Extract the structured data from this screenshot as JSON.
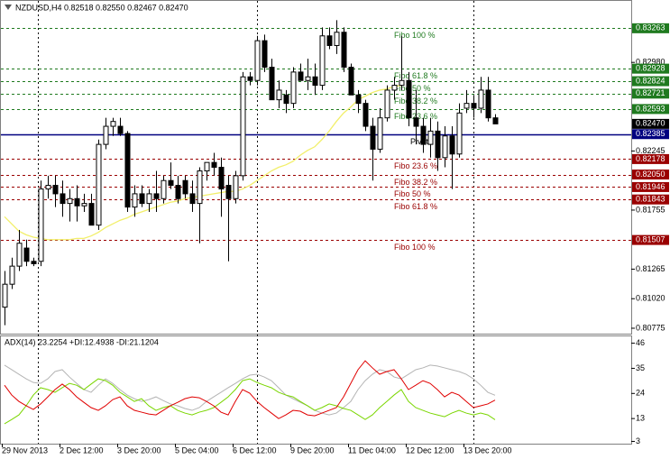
{
  "chart_data": [
    {
      "type": "candlestick",
      "title": "NZDUSD,H4  0.82518 0.82550 0.82467 0.82470",
      "categories": [
        "29 Nov 2013",
        null,
        null,
        null,
        null,
        null,
        null,
        null,
        "2 Dec 12:00",
        null,
        null,
        null,
        null,
        null,
        null,
        null,
        "3 Dec 20:00",
        null,
        null,
        null,
        null,
        null,
        null,
        null,
        "5 Dec 04:00",
        null,
        null,
        null,
        null,
        null,
        null,
        null,
        "6 Dec 12:00",
        null,
        null,
        null,
        null,
        null,
        null,
        null,
        "9 Dec 20:00",
        null,
        null,
        null,
        null,
        null,
        null,
        null,
        "11 Dec 04:00",
        null,
        null,
        null,
        null,
        null,
        null,
        null,
        "12 Dec 12:00",
        null,
        null,
        null,
        null,
        null,
        null,
        null,
        "13 Dec 20:00",
        null,
        null,
        null,
        null
      ],
      "open": [
        0.8095,
        0.8114,
        0.8129,
        0.8144,
        0.8133,
        0.8133,
        0.8193,
        0.8196,
        0.8189,
        0.8181,
        0.8185,
        0.8179,
        0.8181,
        0.8163,
        0.823,
        0.8245,
        0.8245,
        0.8239,
        0.8178,
        0.8189,
        0.8181,
        0.8189,
        0.8185,
        0.82,
        0.8196,
        0.82,
        0.8189,
        0.8181,
        0.8208,
        0.8215,
        0.8211,
        0.8196,
        0.8185,
        0.8204,
        0.8286,
        0.8283,
        0.8316,
        0.8294,
        0.8267,
        0.8271,
        0.8264,
        0.829,
        0.8283,
        0.8286,
        0.8279,
        0.832,
        0.8312,
        0.8323,
        0.8294,
        0.8271,
        0.8264,
        0.8245,
        0.8226,
        0.8252,
        0.8275,
        0.8279,
        0.8283,
        0.8252,
        0.8245,
        0.823,
        0.8241,
        0.8219,
        0.8237,
        0.8222,
        0.826,
        0.8264,
        0.826,
        0.8275,
        0.8252
      ],
      "high": [
        0.8125,
        0.8136,
        0.8159,
        0.8151,
        0.8136,
        0.82,
        0.8204,
        0.8204,
        0.82,
        0.8193,
        0.8196,
        0.8189,
        0.8189,
        0.8234,
        0.8252,
        0.8252,
        0.8252,
        0.8241,
        0.8196,
        0.8196,
        0.8193,
        0.8208,
        0.8204,
        0.8215,
        0.8204,
        0.8204,
        0.82,
        0.8211,
        0.8215,
        0.8223,
        0.8219,
        0.8204,
        0.8208,
        0.829,
        0.829,
        0.832,
        0.8321,
        0.8301,
        0.8283,
        0.8275,
        0.8294,
        0.8297,
        0.8301,
        0.8297,
        0.8327,
        0.8327,
        0.8333,
        0.8327,
        0.8297,
        0.8275,
        0.8267,
        0.8252,
        0.826,
        0.8279,
        0.8286,
        0.832,
        0.829,
        0.8275,
        0.8252,
        0.8252,
        0.8249,
        0.8245,
        0.8245,
        0.8264,
        0.8275,
        0.8271,
        0.8286,
        0.8286,
        0.8255
      ],
      "low": [
        0.808,
        0.811,
        0.8125,
        0.8129,
        0.8129,
        0.8129,
        0.8185,
        0.8178,
        0.817,
        0.8166,
        0.8166,
        0.8174,
        0.8163,
        0.8159,
        0.8226,
        0.8237,
        0.8237,
        0.8174,
        0.817,
        0.8178,
        0.8174,
        0.8174,
        0.8181,
        0.8193,
        0.8181,
        0.8185,
        0.8174,
        0.8148,
        0.82,
        0.8204,
        0.817,
        0.8133,
        0.8181,
        0.82,
        0.8279,
        0.8279,
        0.829,
        0.8267,
        0.826,
        0.8256,
        0.826,
        0.8283,
        0.8275,
        0.8271,
        0.8275,
        0.8309,
        0.8305,
        0.829,
        0.8271,
        0.8256,
        0.8241,
        0.82,
        0.8223,
        0.8249,
        0.8267,
        0.8275,
        0.8245,
        0.823,
        0.8223,
        0.8219,
        0.8208,
        0.8211,
        0.8193,
        0.8219,
        0.8256,
        0.8252,
        0.8256,
        0.8249,
        0.8247
      ],
      "close": [
        0.8114,
        0.8129,
        0.8148,
        0.8133,
        0.8131,
        0.8193,
        0.8196,
        0.8189,
        0.8181,
        0.8185,
        0.8179,
        0.8181,
        0.8163,
        0.823,
        0.8245,
        0.8249,
        0.8239,
        0.8178,
        0.8189,
        0.8181,
        0.8189,
        0.8185,
        0.82,
        0.8196,
        0.8185,
        0.8189,
        0.8181,
        0.8208,
        0.8215,
        0.8211,
        0.8193,
        0.8185,
        0.8204,
        0.8286,
        0.8283,
        0.8316,
        0.8294,
        0.8267,
        0.8275,
        0.8264,
        0.829,
        0.8283,
        0.8286,
        0.8279,
        0.832,
        0.8312,
        0.8323,
        0.8294,
        0.8271,
        0.8264,
        0.8245,
        0.8226,
        0.8252,
        0.8275,
        0.8279,
        0.8283,
        0.8252,
        0.8245,
        0.823,
        0.8241,
        0.8219,
        0.8237,
        0.8222,
        0.8256,
        0.8264,
        0.826,
        0.8275,
        0.8252,
        0.8247
      ],
      "overlay": {
        "color": "#f2ef6a",
        "values": [
          0.817,
          0.8164,
          0.8158,
          0.8155,
          0.8153,
          0.8152,
          0.8151,
          0.8151,
          0.8151,
          0.8151,
          0.8152,
          0.8152,
          0.8154,
          0.8157,
          0.8161,
          0.8164,
          0.8167,
          0.8169,
          0.8172,
          0.8174,
          0.8176,
          0.8178,
          0.818,
          0.8182,
          0.8183,
          0.8185,
          0.8186,
          0.8187,
          0.8188,
          0.8189,
          0.819,
          0.8191,
          0.8191,
          0.8193,
          0.8196,
          0.82,
          0.8204,
          0.8208,
          0.8211,
          0.8213,
          0.8216,
          0.8221,
          0.8225,
          0.8228,
          0.8234,
          0.8241,
          0.8249,
          0.8256,
          0.8261,
          0.8267,
          0.827,
          0.8273,
          0.8275,
          0.8276,
          0.8278,
          0.8279,
          null,
          null,
          null,
          null,
          null,
          null,
          null,
          null,
          null,
          null,
          null,
          null,
          null
        ]
      },
      "levels": {
        "names": [
          "Fibo 100 %",
          "Fibo 61.8 %",
          "Fibo 50 %",
          "Fibo 38.2 %",
          "Fibo 23.6 %",
          "Pivot",
          "Fibo 23.6 %",
          "Fibo 38.2 %",
          "Fibo 50 %",
          "Fibo 61.8 %",
          "Fibo 100 %"
        ],
        "values": [
          0.83263,
          0.82928,
          0.82824,
          0.82721,
          0.82593,
          0.82385,
          0.82178,
          0.8205,
          0.81946,
          0.81843,
          0.81507
        ],
        "value_labels": [
          "0.83263",
          "0.82928",
          "0.82824",
          "0.82721",
          "0.82593",
          "0.82385",
          "0.82178",
          "0.82050",
          "0.81946",
          "0.81843",
          "0.81507"
        ],
        "colors": [
          "#1f7a1f",
          "#1f7a1f",
          "#1f7a1f",
          "#1f7a1f",
          "#1f7a1f",
          "#000080",
          "#9a0000",
          "#9a0000",
          "#9a0000",
          "#9a0000",
          "#9a0000"
        ]
      },
      "bid": {
        "value": 0.8247,
        "label": "0.82470"
      },
      "ylim": [
        0.8073,
        0.8349
      ],
      "yticks": [
        0.80775,
        {
          "value": 0.8102,
          "label": "0.81020"
        },
        0.81265,
        0.81755,
        0.82245,
        {
          "value": 0.8298,
          "label": "0.82980"
        }
      ]
    },
    {
      "type": "line",
      "title": "ADX(14) 23.2254 +DI:12.4938 -DI:21.1204",
      "series": [
        {
          "color": "#b4b4b4",
          "values": [
            36.4,
            34.4,
            32.4,
            30.4,
            28.8,
            28.4,
            30.4,
            33.6,
            34.4,
            31.2,
            28.4,
            25.7,
            24.5,
            27.6,
            30.4,
            28.4,
            25.7,
            23.3,
            21.7,
            20.5,
            21.3,
            22.5,
            20.9,
            19.4,
            18.6,
            17.4,
            16.6,
            17.8,
            20.5,
            22.5,
            24.5,
            26.5,
            28.4,
            30.4,
            32.0,
            32.4,
            31.2,
            29.6,
            26.5,
            23.3,
            21.7,
            20.1,
            18.6,
            16.6,
            15.4,
            14.6,
            15.4,
            17.8,
            20.5,
            25.7,
            29.6,
            32.4,
            34.4,
            33.6,
            31.2,
            30.4,
            32.4,
            34.4,
            35.2,
            36.4,
            36.0,
            35.2,
            34.4,
            33.6,
            32.4,
            30.4,
            27.6,
            24.5,
            23.2
          ]
        },
        {
          "color": "#7ad600",
          "values": [
            10.7,
            12.6,
            14.6,
            18.6,
            23.3,
            26.5,
            25.7,
            24.5,
            26.5,
            28.4,
            27.6,
            25.7,
            28.1,
            30.4,
            29.6,
            27.6,
            24.5,
            22.5,
            20.5,
            21.7,
            18.6,
            16.6,
            17.8,
            18.6,
            16.6,
            15.4,
            14.6,
            15.8,
            16.6,
            17.8,
            20.1,
            22.5,
            25.7,
            29.6,
            30.4,
            28.8,
            27.6,
            26.5,
            24.5,
            23.3,
            22.5,
            20.5,
            18.6,
            16.6,
            17.8,
            19.4,
            18.6,
            17.4,
            16.6,
            14.6,
            12.6,
            14.6,
            17.8,
            20.5,
            23.3,
            25.7,
            20.5,
            17.8,
            16.6,
            15.4,
            14.6,
            13.8,
            15.4,
            16.6,
            15.4,
            14.6,
            15.4,
            14.6,
            12.5
          ]
        },
        {
          "color": "#e00000",
          "values": [
            27.6,
            23.3,
            20.5,
            18.6,
            17.0,
            19.4,
            22.5,
            25.7,
            28.1,
            25.7,
            22.5,
            20.1,
            17.8,
            16.6,
            18.6,
            21.3,
            22.5,
            18.6,
            16.6,
            15.8,
            15.0,
            14.6,
            16.6,
            18.6,
            20.1,
            21.7,
            22.5,
            22.1,
            20.5,
            18.6,
            15.8,
            14.6,
            20.5,
            25.7,
            24.1,
            20.5,
            17.8,
            15.4,
            13.0,
            14.6,
            16.6,
            16.2,
            14.6,
            14.2,
            15.4,
            16.6,
            17.8,
            22.5,
            28.4,
            34.4,
            38.3,
            35.2,
            32.4,
            33.6,
            34.4,
            30.4,
            25.7,
            27.6,
            29.6,
            28.4,
            25.7,
            22.5,
            24.5,
            23.3,
            20.5,
            17.8,
            18.6,
            19.4,
            21.1
          ]
        }
      ],
      "ylim": [
        2,
        49
      ],
      "yticks": [
        3,
        13,
        24,
        35,
        46
      ]
    }
  ]
}
